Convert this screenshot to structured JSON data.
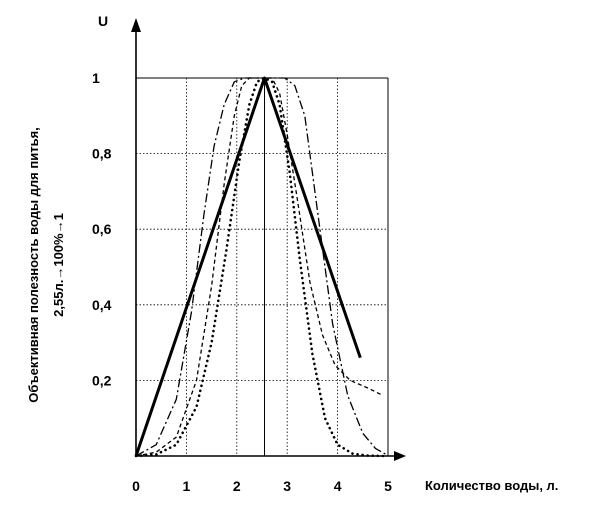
{
  "chart_data": {
    "type": "line",
    "y_axis_symbol": "U",
    "xlabel": "Количество воды, л.",
    "ylabel_line1": "Объективная полезность воды для питья,",
    "ylabel_line2": "2,55л.→100%→1",
    "xlim": [
      0,
      5
    ],
    "ylim": [
      0,
      1
    ],
    "x_ticks": [
      {
        "value": 0,
        "label": "0"
      },
      {
        "value": 1,
        "label": "1"
      },
      {
        "value": 2,
        "label": "2"
      },
      {
        "value": 3,
        "label": "3"
      },
      {
        "value": 4,
        "label": "4"
      },
      {
        "value": 5,
        "label": "5"
      }
    ],
    "y_ticks": [
      {
        "value": 0.2,
        "label": "0,2"
      },
      {
        "value": 0.4,
        "label": "0,4"
      },
      {
        "value": 0.6,
        "label": "0,6"
      },
      {
        "value": 0.8,
        "label": "0,8"
      },
      {
        "value": 1,
        "label": "1"
      }
    ],
    "vertical_gridlines": [
      1,
      2,
      3,
      4,
      5
    ],
    "horizontal_gridlines": [
      0.2,
      0.4,
      0.6,
      0.8,
      1
    ],
    "peak_line_x": 2.55,
    "grid": true,
    "series": [
      {
        "style": "solid-bold",
        "x": [
          0,
          2.55,
          4.45
        ],
        "y": [
          0,
          1,
          0.26
        ]
      },
      {
        "style": "dotted",
        "x": [
          0,
          0.4,
          0.8,
          1.2,
          1.5,
          1.8,
          2.05,
          2.25,
          2.4,
          2.55,
          2.7,
          2.85,
          3.05,
          3.25,
          3.5,
          3.75,
          4.0,
          4.3,
          4.6,
          4.9
        ],
        "y": [
          0,
          0.004,
          0.03,
          0.13,
          0.3,
          0.55,
          0.78,
          0.93,
          0.99,
          1.0,
          0.99,
          0.93,
          0.75,
          0.52,
          0.27,
          0.1,
          0.03,
          0.006,
          0.001,
          0
        ]
      },
      {
        "style": "dashed",
        "x": [
          0,
          0.4,
          0.8,
          1.2,
          1.5,
          1.75,
          1.95,
          2.1,
          2.25,
          2.4,
          2.55,
          2.7,
          2.85,
          3.0,
          3.2,
          3.45,
          3.7,
          3.95,
          4.25,
          4.6,
          4.9
        ],
        "y": [
          0,
          0.01,
          0.05,
          0.2,
          0.45,
          0.72,
          0.9,
          0.98,
          1.0,
          1.0,
          1.0,
          1.0,
          0.96,
          0.85,
          0.68,
          0.46,
          0.32,
          0.24,
          0.2,
          0.18,
          0.16
        ]
      },
      {
        "style": "dash-dot",
        "x": [
          0,
          0.4,
          0.8,
          1.1,
          1.35,
          1.55,
          1.75,
          1.95,
          2.15,
          2.35,
          2.55,
          2.75,
          2.95,
          3.15,
          3.35,
          3.6,
          3.9,
          4.2,
          4.5,
          4.75,
          4.95
        ],
        "y": [
          0,
          0.03,
          0.15,
          0.38,
          0.64,
          0.82,
          0.93,
          0.99,
          1.0,
          1.0,
          1.0,
          1.0,
          1.0,
          0.98,
          0.9,
          0.65,
          0.35,
          0.16,
          0.06,
          0.02,
          0.005
        ]
      }
    ]
  }
}
